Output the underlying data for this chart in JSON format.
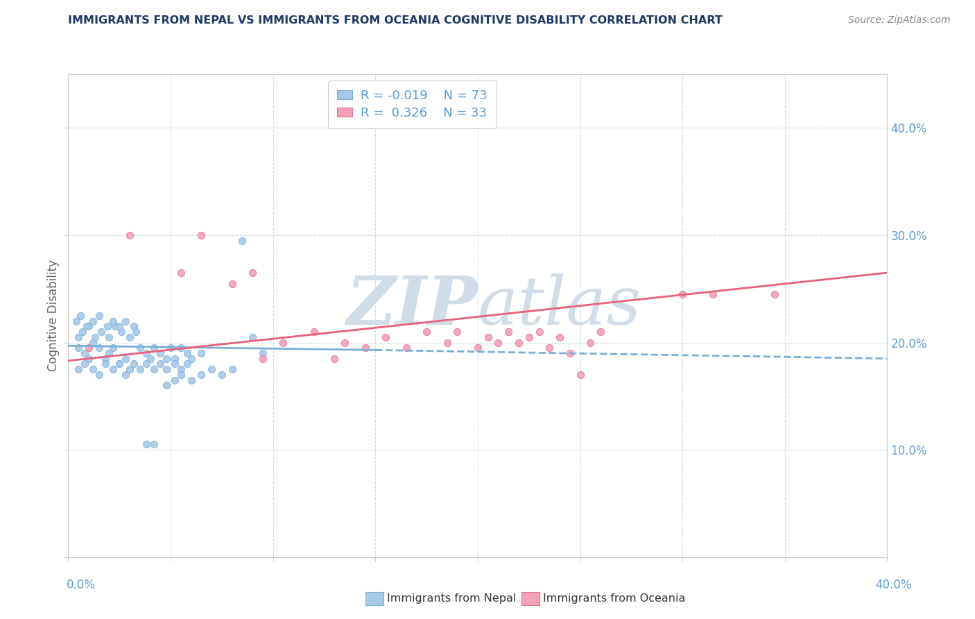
{
  "title": "IMMIGRANTS FROM NEPAL VS IMMIGRANTS FROM OCEANIA COGNITIVE DISABILITY CORRELATION CHART",
  "source": "Source: ZipAtlas.com",
  "ylabel": "Cognitive Disability",
  "color_nepal": "#a8c8e8",
  "color_nepal_edge": "#7aafd4",
  "color_oceania": "#f4a0b8",
  "color_oceania_edge": "#e07090",
  "color_nepal_line": "#7ab0d8",
  "color_oceania_line": "#e8607a",
  "color_grid": "#c8d8e8",
  "color_right_labels": "#5b9bd5",
  "color_title": "#1f3864",
  "color_source": "#888888",
  "color_ylabel": "#666666",
  "watermark_color": "#d0dce8",
  "nepal_x": [
    0.005,
    0.008,
    0.01,
    0.012,
    0.015,
    0.018,
    0.02,
    0.022,
    0.025,
    0.028,
    0.005,
    0.008,
    0.012,
    0.015,
    0.018,
    0.022,
    0.025,
    0.028,
    0.03,
    0.032,
    0.005,
    0.007,
    0.01,
    0.013,
    0.016,
    0.02,
    0.023,
    0.026,
    0.03,
    0.033,
    0.004,
    0.006,
    0.009,
    0.012,
    0.015,
    0.019,
    0.022,
    0.025,
    0.028,
    0.032,
    0.035,
    0.038,
    0.04,
    0.042,
    0.045,
    0.048,
    0.05,
    0.052,
    0.055,
    0.058,
    0.035,
    0.038,
    0.042,
    0.045,
    0.048,
    0.052,
    0.055,
    0.058,
    0.06,
    0.065,
    0.038,
    0.042,
    0.048,
    0.052,
    0.055,
    0.06,
    0.065,
    0.07,
    0.075,
    0.08,
    0.085,
    0.09,
    0.095
  ],
  "nepal_y": [
    0.195,
    0.19,
    0.185,
    0.2,
    0.195,
    0.185,
    0.19,
    0.195,
    0.18,
    0.185,
    0.175,
    0.18,
    0.175,
    0.17,
    0.18,
    0.175,
    0.18,
    0.17,
    0.175,
    0.18,
    0.205,
    0.21,
    0.215,
    0.205,
    0.21,
    0.205,
    0.215,
    0.21,
    0.205,
    0.21,
    0.22,
    0.225,
    0.215,
    0.22,
    0.225,
    0.215,
    0.22,
    0.215,
    0.22,
    0.215,
    0.195,
    0.19,
    0.185,
    0.195,
    0.19,
    0.185,
    0.195,
    0.185,
    0.195,
    0.19,
    0.175,
    0.18,
    0.175,
    0.18,
    0.175,
    0.18,
    0.175,
    0.18,
    0.185,
    0.19,
    0.105,
    0.105,
    0.16,
    0.165,
    0.17,
    0.165,
    0.17,
    0.175,
    0.17,
    0.175,
    0.295,
    0.205,
    0.19
  ],
  "oceania_x": [
    0.01,
    0.03,
    0.055,
    0.065,
    0.08,
    0.09,
    0.095,
    0.105,
    0.12,
    0.13,
    0.135,
    0.145,
    0.155,
    0.165,
    0.175,
    0.185,
    0.19,
    0.2,
    0.205,
    0.21,
    0.215,
    0.22,
    0.225,
    0.23,
    0.235,
    0.24,
    0.245,
    0.25,
    0.255,
    0.26,
    0.3,
    0.315,
    0.345
  ],
  "oceania_y": [
    0.195,
    0.3,
    0.265,
    0.3,
    0.255,
    0.265,
    0.185,
    0.2,
    0.21,
    0.185,
    0.2,
    0.195,
    0.205,
    0.195,
    0.21,
    0.2,
    0.21,
    0.195,
    0.205,
    0.2,
    0.21,
    0.2,
    0.205,
    0.21,
    0.195,
    0.205,
    0.19,
    0.17,
    0.2,
    0.21,
    0.245,
    0.245,
    0.245
  ],
  "nepal_line_x": [
    0.0,
    0.15,
    0.4
  ],
  "nepal_line_y": [
    0.197,
    0.193,
    0.185
  ],
  "oceania_line_x": [
    0.0,
    0.4
  ],
  "oceania_line_y": [
    0.183,
    0.265
  ],
  "x_range": [
    0.0,
    0.4
  ],
  "y_range": [
    0.0,
    0.45
  ]
}
